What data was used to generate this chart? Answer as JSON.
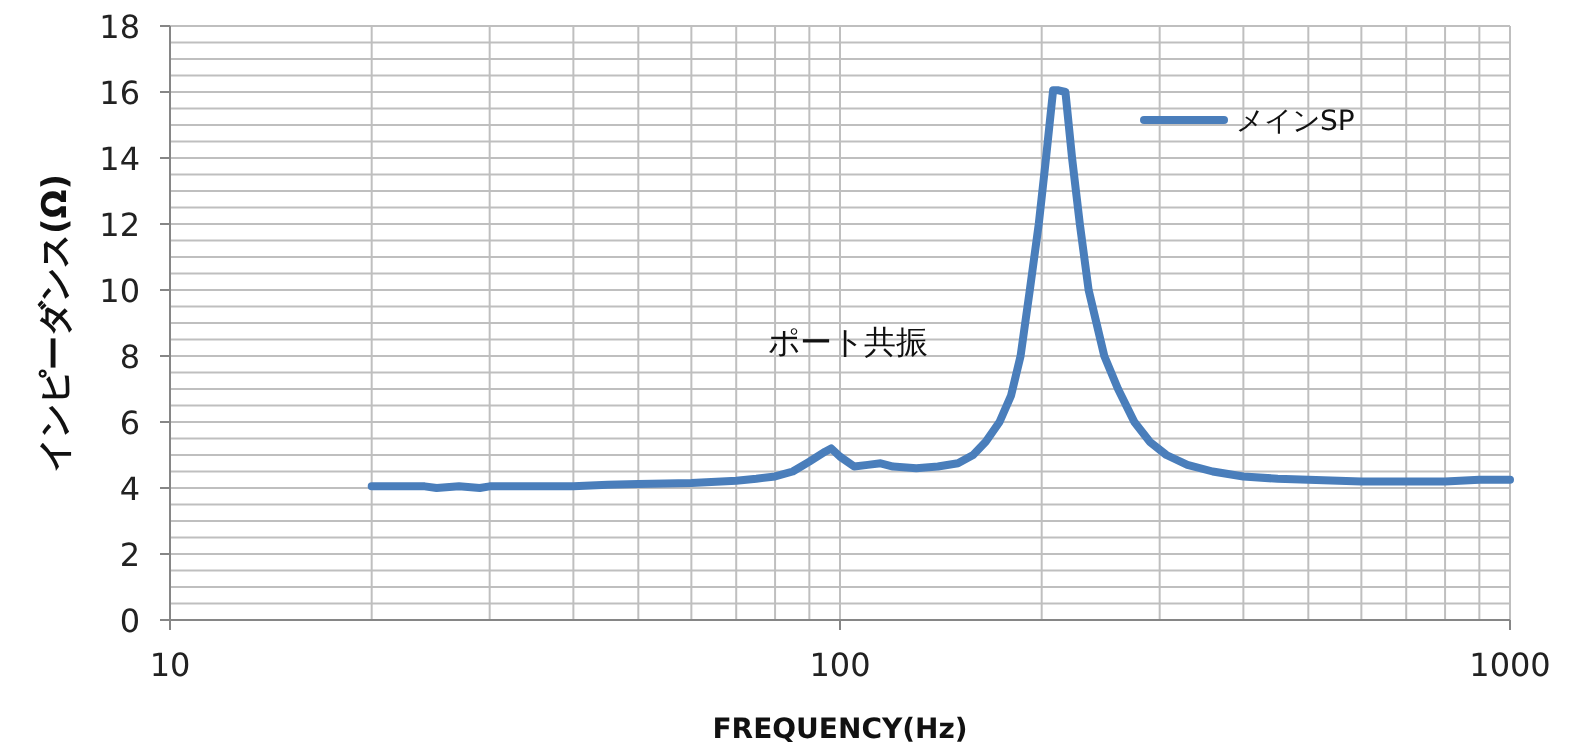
{
  "chart_data": {
    "type": "line",
    "xlabel": "FREQUENCY(Hz)",
    "ylabel": "インピーダンス(Ω)",
    "log": "x",
    "xlim": [
      10,
      1000
    ],
    "xticks": [
      10,
      100,
      1000
    ],
    "ylim": [
      0,
      18
    ],
    "yticks": [
      0,
      2,
      4,
      6,
      8,
      10,
      12,
      14,
      16,
      18
    ],
    "grid": true,
    "legend": "top right",
    "marker": "none",
    "line_style": "solid",
    "annotations": [
      "ポート共振"
    ],
    "series": [
      {
        "name": "メインSP",
        "color": "#4a7ebb",
        "x": [
          20,
          24,
          25,
          27,
          29,
          30,
          35,
          40,
          45,
          50,
          60,
          70,
          75,
          80,
          85,
          90,
          95,
          97,
          100,
          105,
          110,
          115,
          120,
          130,
          140,
          150,
          158,
          165,
          173,
          180,
          186,
          192,
          198,
          203,
          208,
          212,
          217,
          222,
          228,
          235,
          248,
          260,
          275,
          290,
          307,
          330,
          360,
          400,
          450,
          500,
          600,
          700,
          800,
          900,
          1000
        ],
        "values": [
          4.05,
          4.05,
          4.0,
          4.05,
          4.0,
          4.05,
          4.05,
          4.05,
          4.1,
          4.12,
          4.15,
          4.22,
          4.28,
          4.35,
          4.5,
          4.8,
          5.1,
          5.2,
          4.95,
          4.65,
          4.7,
          4.75,
          4.65,
          4.6,
          4.65,
          4.75,
          5.0,
          5.4,
          6.0,
          6.8,
          8.0,
          10.0,
          12.0,
          14.0,
          16.05,
          16.05,
          16.0,
          14.0,
          12.0,
          10.0,
          8.0,
          7.0,
          6.0,
          5.4,
          5.0,
          4.7,
          4.5,
          4.35,
          4.28,
          4.25,
          4.2,
          4.2,
          4.2,
          4.25,
          4.25
        ]
      }
    ]
  }
}
